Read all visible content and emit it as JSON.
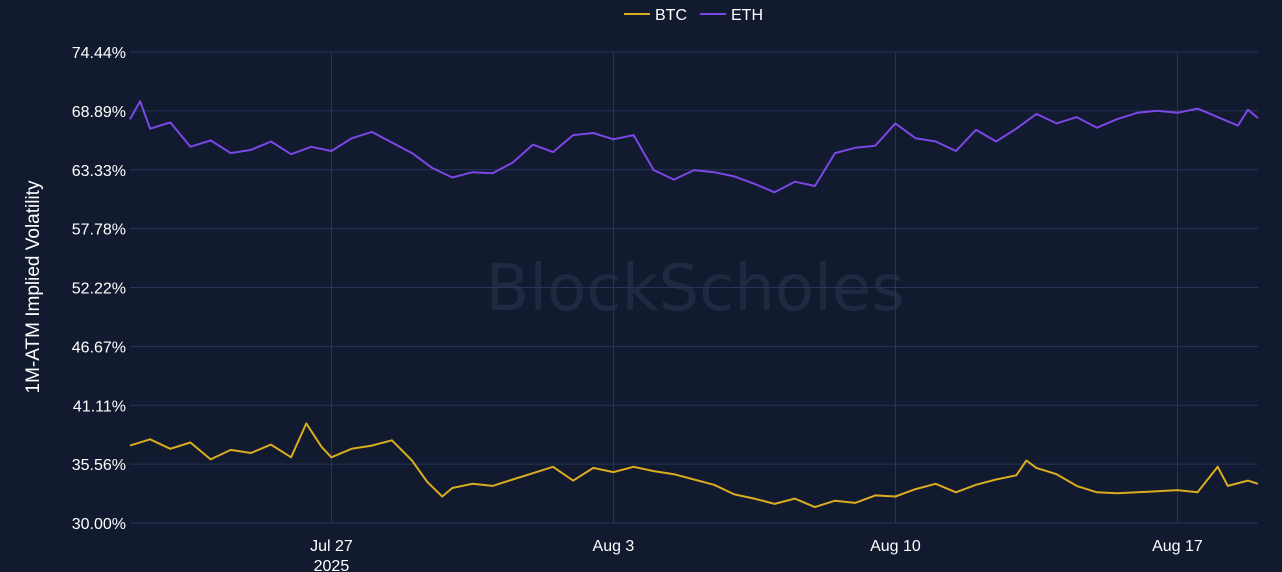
{
  "watermark": "BlockScholes",
  "colors": {
    "background": "#111a2e",
    "grid": "#25365a",
    "BTC": "#d9ad1f",
    "ETH": "#7b47e6"
  },
  "chart_data": {
    "type": "line",
    "ylabel": "1M-ATM Implied Volatility",
    "xlabel": "",
    "title": "",
    "grid": true,
    "legend": {
      "position": "top-center",
      "entries": [
        "BTC",
        "ETH"
      ]
    },
    "ylim": [
      30.0,
      74.44
    ],
    "xlim": [
      "2025-07-22T00:00",
      "2025-08-19T00:00"
    ],
    "y_ticks": [
      "30.00%",
      "35.56%",
      "41.11%",
      "46.67%",
      "52.22%",
      "57.78%",
      "63.33%",
      "68.89%",
      "74.44%"
    ],
    "y_tick_values": [
      30.0,
      35.56,
      41.11,
      46.67,
      52.22,
      57.78,
      63.33,
      68.89,
      74.44
    ],
    "x_ticks": [
      {
        "date": "2025-07-27",
        "label": "Jul 27",
        "sub": "2025"
      },
      {
        "date": "2025-08-03",
        "label": "Aug 3",
        "sub": ""
      },
      {
        "date": "2025-08-10",
        "label": "Aug 10",
        "sub": ""
      },
      {
        "date": "2025-08-17",
        "label": "Aug 17",
        "sub": ""
      }
    ],
    "series": [
      {
        "name": "BTC",
        "color": "#d9ad1f",
        "points": [
          [
            "2025-07-22T00:00",
            37.3
          ],
          [
            "2025-07-22T12:00",
            37.9
          ],
          [
            "2025-07-23T00:00",
            37.0
          ],
          [
            "2025-07-23T12:00",
            37.6
          ],
          [
            "2025-07-24T00:00",
            36.0
          ],
          [
            "2025-07-24T12:00",
            36.9
          ],
          [
            "2025-07-25T00:00",
            36.6
          ],
          [
            "2025-07-25T12:00",
            37.4
          ],
          [
            "2025-07-26T00:00",
            36.2
          ],
          [
            "2025-07-26T09:00",
            39.4
          ],
          [
            "2025-07-26T18:00",
            37.2
          ],
          [
            "2025-07-27T00:00",
            36.2
          ],
          [
            "2025-07-27T12:00",
            37.0
          ],
          [
            "2025-07-28T00:00",
            37.3
          ],
          [
            "2025-07-28T12:00",
            37.8
          ],
          [
            "2025-07-29T00:00",
            35.9
          ],
          [
            "2025-07-29T09:00",
            33.9
          ],
          [
            "2025-07-29T18:00",
            32.5
          ],
          [
            "2025-07-30T00:00",
            33.3
          ],
          [
            "2025-07-30T12:00",
            33.7
          ],
          [
            "2025-07-31T00:00",
            33.5
          ],
          [
            "2025-07-31T12:00",
            34.1
          ],
          [
            "2025-08-01T00:00",
            34.7
          ],
          [
            "2025-08-01T12:00",
            35.3
          ],
          [
            "2025-08-02T00:00",
            34.0
          ],
          [
            "2025-08-02T12:00",
            35.2
          ],
          [
            "2025-08-03T00:00",
            34.8
          ],
          [
            "2025-08-03T12:00",
            35.3
          ],
          [
            "2025-08-04T00:00",
            34.9
          ],
          [
            "2025-08-04T12:00",
            34.6
          ],
          [
            "2025-08-05T00:00",
            34.1
          ],
          [
            "2025-08-05T12:00",
            33.6
          ],
          [
            "2025-08-06T00:00",
            32.7
          ],
          [
            "2025-08-06T12:00",
            32.3
          ],
          [
            "2025-08-07T00:00",
            31.8
          ],
          [
            "2025-08-07T12:00",
            32.3
          ],
          [
            "2025-08-08T00:00",
            31.5
          ],
          [
            "2025-08-08T12:00",
            32.1
          ],
          [
            "2025-08-09T00:00",
            31.9
          ],
          [
            "2025-08-09T12:00",
            32.6
          ],
          [
            "2025-08-10T00:00",
            32.5
          ],
          [
            "2025-08-10T12:00",
            33.2
          ],
          [
            "2025-08-11T00:00",
            33.7
          ],
          [
            "2025-08-11T12:00",
            32.9
          ],
          [
            "2025-08-12T00:00",
            33.6
          ],
          [
            "2025-08-12T12:00",
            34.1
          ],
          [
            "2025-08-13T00:00",
            34.5
          ],
          [
            "2025-08-13T06:00",
            35.9
          ],
          [
            "2025-08-13T12:00",
            35.2
          ],
          [
            "2025-08-14T00:00",
            34.6
          ],
          [
            "2025-08-14T12:00",
            33.5
          ],
          [
            "2025-08-15T00:00",
            32.9
          ],
          [
            "2025-08-15T12:00",
            32.8
          ],
          [
            "2025-08-16T00:00",
            32.9
          ],
          [
            "2025-08-16T12:00",
            33.0
          ],
          [
            "2025-08-17T00:00",
            33.1
          ],
          [
            "2025-08-17T12:00",
            32.9
          ],
          [
            "2025-08-18T00:00",
            35.3
          ],
          [
            "2025-08-18T06:00",
            33.5
          ],
          [
            "2025-08-18T18:00",
            34.0
          ],
          [
            "2025-08-19T00:00",
            33.7
          ]
        ]
      },
      {
        "name": "ETH",
        "color": "#7b47e6",
        "points": [
          [
            "2025-07-22T00:00",
            68.1
          ],
          [
            "2025-07-22T06:00",
            69.8
          ],
          [
            "2025-07-22T12:00",
            67.2
          ],
          [
            "2025-07-23T00:00",
            67.8
          ],
          [
            "2025-07-23T12:00",
            65.5
          ],
          [
            "2025-07-24T00:00",
            66.1
          ],
          [
            "2025-07-24T12:00",
            64.9
          ],
          [
            "2025-07-25T00:00",
            65.2
          ],
          [
            "2025-07-25T12:00",
            66.0
          ],
          [
            "2025-07-26T00:00",
            64.8
          ],
          [
            "2025-07-26T12:00",
            65.5
          ],
          [
            "2025-07-27T00:00",
            65.1
          ],
          [
            "2025-07-27T12:00",
            66.3
          ],
          [
            "2025-07-28T00:00",
            66.9
          ],
          [
            "2025-07-28T12:00",
            65.9
          ],
          [
            "2025-07-29T00:00",
            64.9
          ],
          [
            "2025-07-29T12:00",
            63.5
          ],
          [
            "2025-07-30T00:00",
            62.6
          ],
          [
            "2025-07-30T12:00",
            63.1
          ],
          [
            "2025-07-31T00:00",
            63.0
          ],
          [
            "2025-07-31T12:00",
            64.0
          ],
          [
            "2025-08-01T00:00",
            65.7
          ],
          [
            "2025-08-01T12:00",
            65.0
          ],
          [
            "2025-08-02T00:00",
            66.6
          ],
          [
            "2025-08-02T12:00",
            66.8
          ],
          [
            "2025-08-03T00:00",
            66.2
          ],
          [
            "2025-08-03T12:00",
            66.6
          ],
          [
            "2025-08-04T00:00",
            63.3
          ],
          [
            "2025-08-04T12:00",
            62.4
          ],
          [
            "2025-08-05T00:00",
            63.3
          ],
          [
            "2025-08-05T12:00",
            63.1
          ],
          [
            "2025-08-06T00:00",
            62.7
          ],
          [
            "2025-08-06T12:00",
            62.0
          ],
          [
            "2025-08-07T00:00",
            61.2
          ],
          [
            "2025-08-07T12:00",
            62.2
          ],
          [
            "2025-08-08T00:00",
            61.8
          ],
          [
            "2025-08-08T12:00",
            64.9
          ],
          [
            "2025-08-09T00:00",
            65.4
          ],
          [
            "2025-08-09T12:00",
            65.6
          ],
          [
            "2025-08-10T00:00",
            67.7
          ],
          [
            "2025-08-10T12:00",
            66.3
          ],
          [
            "2025-08-11T00:00",
            66.0
          ],
          [
            "2025-08-11T12:00",
            65.1
          ],
          [
            "2025-08-12T00:00",
            67.1
          ],
          [
            "2025-08-12T12:00",
            66.0
          ],
          [
            "2025-08-13T00:00",
            67.2
          ],
          [
            "2025-08-13T12:00",
            68.6
          ],
          [
            "2025-08-14T00:00",
            67.7
          ],
          [
            "2025-08-14T12:00",
            68.3
          ],
          [
            "2025-08-15T00:00",
            67.3
          ],
          [
            "2025-08-15T12:00",
            68.1
          ],
          [
            "2025-08-16T00:00",
            68.7
          ],
          [
            "2025-08-16T12:00",
            68.9
          ],
          [
            "2025-08-17T00:00",
            68.7
          ],
          [
            "2025-08-17T12:00",
            69.1
          ],
          [
            "2025-08-18T00:00",
            68.3
          ],
          [
            "2025-08-18T12:00",
            67.5
          ],
          [
            "2025-08-18T18:00",
            69.0
          ],
          [
            "2025-08-19T00:00",
            68.2
          ]
        ]
      }
    ]
  }
}
